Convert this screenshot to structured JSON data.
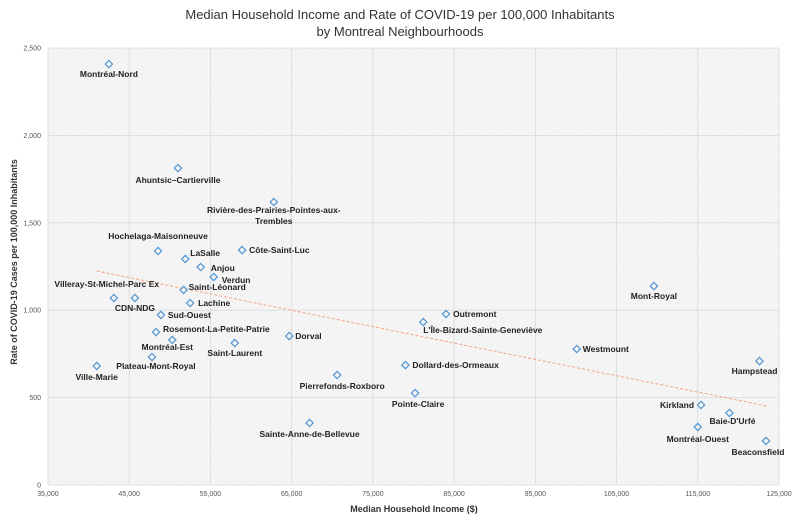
{
  "chart_data": {
    "type": "scatter",
    "title": "Median Household Income and Rate of COVID-19 per 100,000 Inhabitants",
    "subtitle": "by Montreal Neighbourhoods",
    "xlabel": "Median Household Income ($)",
    "ylabel": "Rate of COVID-19 Cases per 100,000 Inhabitants",
    "xlim": [
      35000,
      125000
    ],
    "ylim": [
      0,
      2500
    ],
    "xticks": [
      35000,
      45000,
      55000,
      65000,
      75000,
      85000,
      95000,
      105000,
      115000,
      125000
    ],
    "yticks": [
      0,
      500,
      1000,
      1500,
      2000,
      2500
    ],
    "grid": true,
    "marker": "hollow-diamond",
    "colors": {
      "marker": "#5b9bd5",
      "trendline": "#f4a582",
      "grid": "#d9d9d9",
      "plot_bg": "#f3f3f3"
    },
    "trendline": {
      "type": "linear",
      "style": "dashed",
      "x": [
        41000,
        123500
      ],
      "y": [
        1224,
        452
      ]
    },
    "points": [
      {
        "name": "Montréal-Nord",
        "x": 42500,
        "y": 2408
      },
      {
        "name": "Ahuntsic–Cartierville",
        "x": 51000,
        "y": 1813
      },
      {
        "name": "Rivière-des-Prairies-Pointes-aux-Trembles",
        "x": 62800,
        "y": 1619
      },
      {
        "name": "Hochelaga-Maisonneuve",
        "x": 48550,
        "y": 1339
      },
      {
        "name": "Côte-Saint-Luc",
        "x": 58900,
        "y": 1344
      },
      {
        "name": "LaSalle",
        "x": 51900,
        "y": 1293
      },
      {
        "name": "Anjou",
        "x": 53800,
        "y": 1247
      },
      {
        "name": "Verdun",
        "x": 55400,
        "y": 1190
      },
      {
        "name": "Saint-Léonard",
        "x": 51700,
        "y": 1116
      },
      {
        "name": "Villeray-St-Michel-Parc Ex",
        "x": 43100,
        "y": 1070
      },
      {
        "name": "CDN-NDG",
        "x": 45700,
        "y": 1070
      },
      {
        "name": "Lachine",
        "x": 52500,
        "y": 1041
      },
      {
        "name": "Sud-Ouest",
        "x": 48900,
        "y": 973
      },
      {
        "name": "Rosemont-La-Petite-Patrie",
        "x": 48300,
        "y": 875
      },
      {
        "name": "Montréal-Est",
        "x": 50300,
        "y": 830
      },
      {
        "name": "Saint-Laurent",
        "x": 58000,
        "y": 812
      },
      {
        "name": "Dorval",
        "x": 64700,
        "y": 852
      },
      {
        "name": "Plateau-Mont-Royal",
        "x": 47800,
        "y": 732
      },
      {
        "name": "Ville-Marie",
        "x": 41000,
        "y": 681
      },
      {
        "name": "Pierrefonds-Roxboro",
        "x": 70600,
        "y": 629
      },
      {
        "name": "Sainte-Anne-de-Bellevue",
        "x": 67200,
        "y": 355
      },
      {
        "name": "Mont-Royal",
        "x": 109600,
        "y": 1138
      },
      {
        "name": "Outremont",
        "x": 84000,
        "y": 978
      },
      {
        "name": "L'Île-Bizard-Sainte-Geneviève",
        "x": 81200,
        "y": 932
      },
      {
        "name": "Westmount",
        "x": 100100,
        "y": 778
      },
      {
        "name": "Dollard-des-Ormeaux",
        "x": 79000,
        "y": 686
      },
      {
        "name": "Pointe-Claire",
        "x": 80200,
        "y": 526
      },
      {
        "name": "Hampstead",
        "x": 122600,
        "y": 709
      },
      {
        "name": "Kirkland",
        "x": 115400,
        "y": 458
      },
      {
        "name": "Baie-D'Urfé",
        "x": 118900,
        "y": 412
      },
      {
        "name": "Montréal-Ouest",
        "x": 115000,
        "y": 332
      },
      {
        "name": "Beaconsfield",
        "x": 123400,
        "y": 252
      }
    ]
  }
}
